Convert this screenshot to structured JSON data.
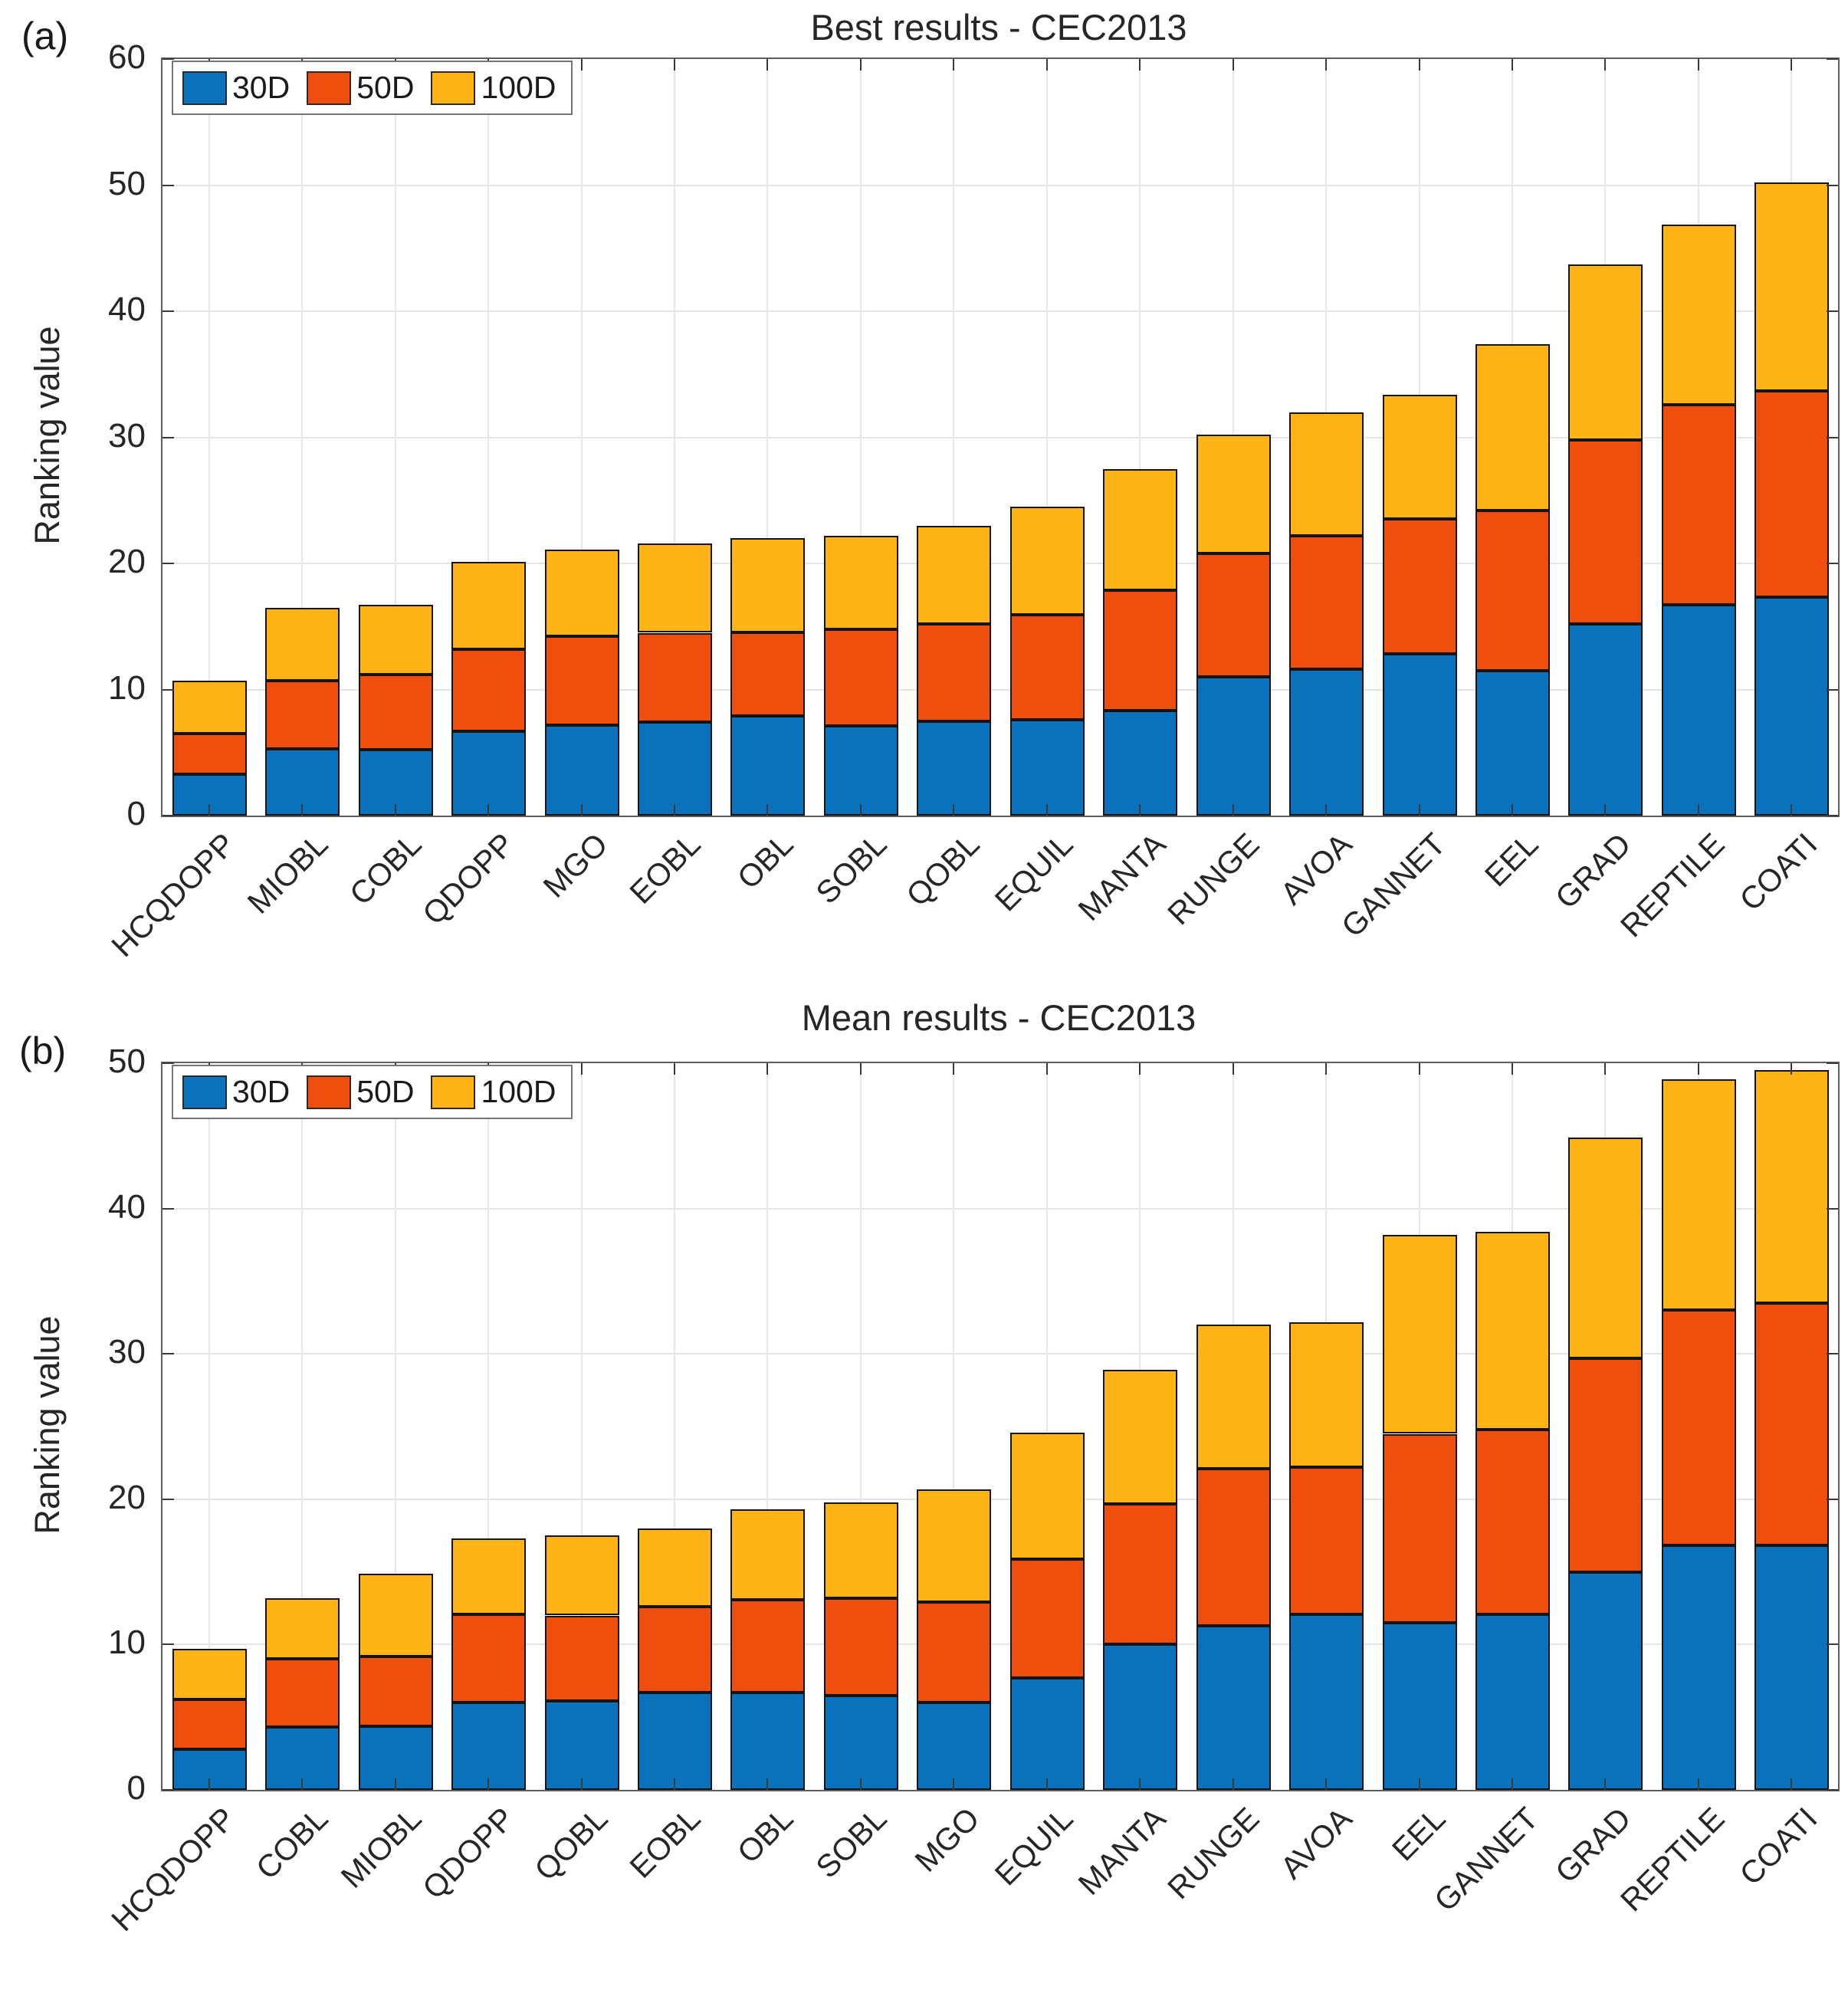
{
  "page": {
    "background": "#ffffff"
  },
  "colors": {
    "series_30d": "#0A72BD",
    "series_50d": "#F04E0D",
    "series_100d": "#FDB414",
    "bar_border": "#141414",
    "axis_border": "#5f5f5f",
    "gridline": "#e4e4e4",
    "text": "#262626"
  },
  "chart_data": [
    {
      "type": "bar",
      "stacked": true,
      "panel_label": "(a)",
      "title": "Best results - CEC2013",
      "xlabel": "",
      "ylabel": "Ranking value",
      "ylim": [
        0,
        60
      ],
      "yticks": [
        0,
        10,
        20,
        30,
        40,
        50,
        60
      ],
      "grid": true,
      "legend_position": "top-left-inside",
      "categories": [
        "HCQDOPP",
        "MIOBL",
        "COBL",
        "QDOPP",
        "MGO",
        "EOBL",
        "OBL",
        "SOBL",
        "QOBL",
        "EQUIL",
        "MANTA",
        "RUNGE",
        "AVOA",
        "GANNET",
        "EEL",
        "GRAD",
        "REPTILE",
        "COATI"
      ],
      "series": [
        {
          "name": "30D",
          "color": "#0A72BD",
          "values": [
            3.3,
            5.3,
            5.2,
            6.7,
            7.2,
            7.4,
            7.9,
            7.1,
            7.5,
            7.6,
            8.3,
            11.0,
            11.6,
            12.8,
            11.5,
            15.2,
            16.7,
            17.3
          ]
        },
        {
          "name": "50D",
          "color": "#F04E0D",
          "values": [
            3.2,
            5.4,
            6.0,
            6.5,
            7.0,
            7.1,
            6.6,
            7.7,
            7.7,
            8.3,
            9.6,
            9.8,
            10.6,
            10.7,
            12.7,
            14.6,
            15.9,
            16.4
          ]
        },
        {
          "name": "100D",
          "color": "#FDB414",
          "values": [
            4.2,
            5.8,
            5.5,
            6.9,
            6.9,
            7.1,
            7.5,
            7.4,
            7.8,
            8.6,
            9.6,
            9.4,
            9.8,
            9.9,
            13.2,
            13.9,
            14.3,
            16.5
          ]
        }
      ]
    },
    {
      "type": "bar",
      "stacked": true,
      "panel_label": "(b)",
      "title": "Mean results - CEC2013",
      "xlabel": "",
      "ylabel": "Ranking value",
      "ylim": [
        0,
        50
      ],
      "yticks": [
        0,
        10,
        20,
        30,
        40,
        50
      ],
      "grid": true,
      "legend_position": "top-left-inside",
      "categories": [
        "HCQDOPP",
        "COBL",
        "MIOBL",
        "QDOPP",
        "QOBL",
        "EOBL",
        "OBL",
        "SOBL",
        "MGO",
        "EQUIL",
        "MANTA",
        "RUNGE",
        "AVOA",
        "EEL",
        "GANNET",
        "GRAD",
        "REPTILE",
        "COATI"
      ],
      "series": [
        {
          "name": "30D",
          "color": "#0A72BD",
          "values": [
            2.8,
            4.3,
            4.4,
            6.0,
            6.1,
            6.7,
            6.7,
            6.5,
            6.0,
            7.7,
            10.0,
            11.3,
            12.1,
            11.5,
            12.1,
            15.0,
            16.8,
            16.8
          ]
        },
        {
          "name": "50D",
          "color": "#F04E0D",
          "values": [
            3.4,
            4.7,
            4.8,
            6.1,
            5.9,
            5.9,
            6.4,
            6.7,
            6.9,
            8.2,
            9.7,
            10.8,
            10.1,
            13.0,
            12.7,
            14.7,
            16.2,
            16.7
          ]
        },
        {
          "name": "100D",
          "color": "#FDB414",
          "values": [
            3.5,
            4.2,
            5.7,
            5.2,
            5.5,
            5.4,
            6.2,
            6.6,
            7.8,
            8.7,
            9.2,
            9.9,
            10.0,
            13.7,
            13.6,
            15.2,
            15.9,
            16.0
          ]
        }
      ]
    }
  ]
}
